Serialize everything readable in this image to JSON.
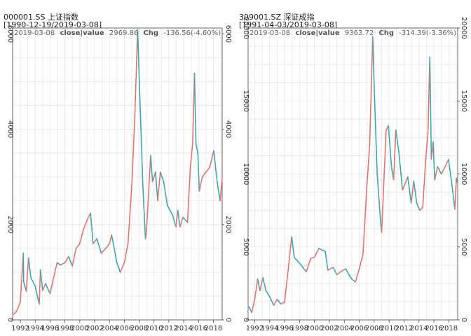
{
  "chart_data": [
    {
      "type": "line",
      "title": "000001.SS 上证指数",
      "subtitle": "[1990-12-19/2019-03-08]",
      "info": {
        "date": "2019-03-08",
        "label": "close|value",
        "value": "2969.86",
        "chg_label": "Chg",
        "chg": "-136.56(-4.60%)"
      },
      "xlabel": "",
      "ylabel": "",
      "xlim": [
        1990.96,
        2019.18
      ],
      "ylim": [
        0,
        6124
      ],
      "x_ticks": [
        1992,
        1994,
        1996,
        1998,
        2000,
        2002,
        2004,
        2006,
        2008,
        2010,
        2012,
        2014,
        2016,
        2018
      ],
      "y_ticks": [
        0,
        2000,
        4000,
        6000
      ],
      "grid": true,
      "colors": {
        "up": "#e8726b",
        "down": "#38a9b0"
      },
      "series": [
        {
          "x": [
            1990.97,
            1991.5,
            1992.0,
            1992.4,
            1992.45,
            1992.8,
            1993.1,
            1993.4,
            1994.0,
            1994.55,
            1994.7,
            1995.0,
            1995.4,
            1996.0,
            1996.5,
            1996.95,
            1997.4,
            1998.0,
            1998.5,
            1999.0,
            1999.5,
            2000.0,
            2000.5,
            2001.0,
            2001.45,
            2001.8,
            2002.3,
            2002.9,
            2003.5,
            2004.0,
            2004.3,
            2005.0,
            2005.45,
            2006.0,
            2006.5,
            2007.0,
            2007.4,
            2007.8,
            2008.0,
            2008.5,
            2008.85,
            2009.0,
            2009.55,
            2009.8,
            2010.2,
            2010.5,
            2010.85,
            2011.3,
            2011.8,
            2012.5,
            2012.95,
            2013.2,
            2013.5,
            2013.9,
            2014.5,
            2014.9,
            2015.2,
            2015.45,
            2015.65,
            2015.9,
            2016.1,
            2016.5,
            2017.0,
            2017.5,
            2018.05,
            2018.5,
            2018.9,
            2019.18
          ],
          "y": [
            100,
            180,
            380,
            1400,
            800,
            600,
            1300,
            900,
            700,
            330,
            1050,
            620,
            760,
            550,
            900,
            1200,
            1150,
            1200,
            1330,
            1130,
            1500,
            1600,
            1900,
            2100,
            2240,
            1600,
            1700,
            1400,
            1500,
            1600,
            1780,
            1200,
            1000,
            1200,
            1600,
            2800,
            4200,
            6092,
            5100,
            2800,
            1700,
            1900,
            3450,
            2900,
            3100,
            2500,
            3100,
            2900,
            2400,
            2200,
            1950,
            2300,
            1950,
            2150,
            2050,
            3200,
            3700,
            5178,
            3700,
            3500,
            2700,
            3000,
            3100,
            3200,
            3550,
            2900,
            2500,
            2970
          ]
        }
      ]
    },
    {
      "type": "line",
      "title": "399001.SZ 深证成指",
      "subtitle": "[1991-04-03/2019-03-08]",
      "info": {
        "date": "2019-03-08",
        "label": "close|value",
        "value": "9363.72",
        "chg_label": "Chg",
        "chg": "-314.39(-3.36%)"
      },
      "xlabel": "",
      "ylabel": "",
      "xlim": [
        1991.12,
        2019.18
      ],
      "ylim": [
        0,
        20000
      ],
      "x_ticks": [
        1992,
        1994,
        1996,
        1998,
        2000,
        2002,
        2004,
        2006,
        2008,
        2010,
        2012,
        2014,
        2016,
        2018
      ],
      "y_ticks": [
        0,
        5000,
        10000,
        15000,
        20000
      ],
      "grid": true,
      "colors": {
        "up": "#e8726b",
        "down": "#38a9b0"
      },
      "series": [
        {
          "x": [
            1991.25,
            1991.6,
            1992.0,
            1992.4,
            1992.7,
            1993.1,
            1993.5,
            1994.0,
            1994.55,
            1995.0,
            1995.5,
            1996.0,
            1996.5,
            1996.95,
            1997.3,
            1997.8,
            1998.3,
            1998.9,
            1999.5,
            2000.0,
            2000.6,
            2001.0,
            2001.45,
            2001.8,
            2002.5,
            2003.0,
            2003.5,
            2004.2,
            2004.6,
            2005.0,
            2005.5,
            2006.0,
            2006.5,
            2007.0,
            2007.4,
            2007.8,
            2008.0,
            2008.4,
            2008.85,
            2009.0,
            2009.6,
            2009.9,
            2010.3,
            2010.6,
            2010.9,
            2011.3,
            2011.8,
            2012.5,
            2012.95,
            2013.3,
            2013.7,
            2014.1,
            2014.5,
            2014.9,
            2015.2,
            2015.45,
            2015.65,
            2015.9,
            2016.1,
            2016.5,
            2017.0,
            2017.5,
            2017.95,
            2018.4,
            2018.8,
            2019.0,
            2019.18
          ],
          "y": [
            900,
            500,
            1400,
            2800,
            2000,
            2900,
            2000,
            1600,
            1000,
            1400,
            1100,
            1200,
            3500,
            5700,
            4300,
            4000,
            3700,
            3300,
            4200,
            4300,
            4900,
            4800,
            4700,
            3400,
            3600,
            3100,
            3300,
            3500,
            3100,
            2800,
            2600,
            3500,
            4500,
            9000,
            12000,
            19400,
            16000,
            10000,
            6800,
            6000,
            13000,
            13300,
            10600,
            9600,
            13000,
            11500,
            8900,
            9800,
            8000,
            9500,
            8000,
            7500,
            7700,
            11000,
            12800,
            18000,
            11000,
            12200,
            9600,
            10500,
            10000,
            10500,
            11000,
            9300,
            7600,
            9700,
            9364
          ]
        }
      ]
    }
  ]
}
